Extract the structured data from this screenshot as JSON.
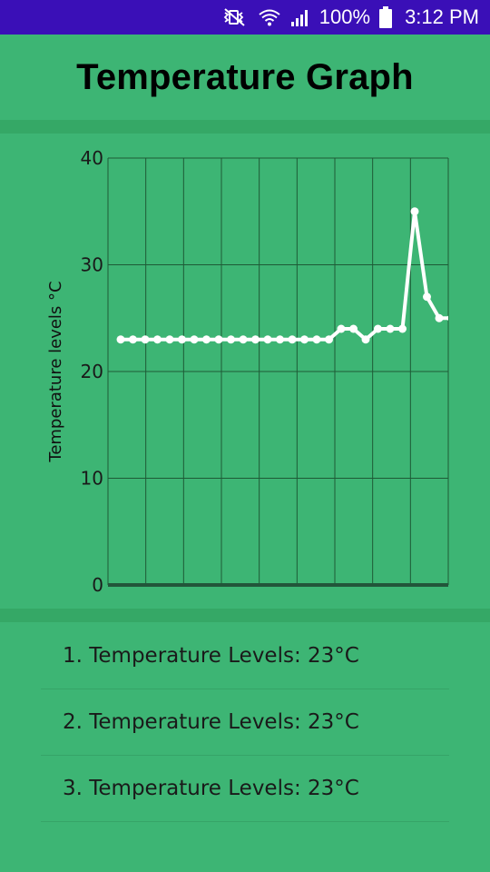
{
  "status_bar": {
    "battery_pct": "100%",
    "time": "3:12 PM",
    "icons": [
      "mute-vibrate-icon",
      "wifi-icon",
      "signal-icon",
      "battery-icon"
    ]
  },
  "header": {
    "title": "Temperature Graph"
  },
  "chart_data": {
    "type": "line",
    "title": "",
    "xlabel": "",
    "ylabel": "Temperature levels °C",
    "ylim": [
      0,
      40
    ],
    "yticks": [
      0,
      10,
      20,
      30,
      40
    ],
    "grid": true,
    "line_color": "#ffffff",
    "grid_color": "#1e5a36",
    "series": [
      {
        "values": [
          23,
          23,
          23,
          23,
          23,
          23,
          23,
          23,
          23,
          23,
          23,
          23,
          23,
          23,
          23,
          23,
          23,
          23,
          24,
          24,
          23,
          24,
          24,
          24,
          35,
          27,
          25,
          25,
          24
        ]
      }
    ]
  },
  "list": {
    "items": [
      "1. Temperature Levels: 23°C",
      "2. Temperature Levels: 23°C",
      "3. Temperature Levels: 23°C"
    ]
  },
  "colors": {
    "background": "#3db574",
    "status_bar": "#3a0fb7",
    "band": "#35a866"
  }
}
